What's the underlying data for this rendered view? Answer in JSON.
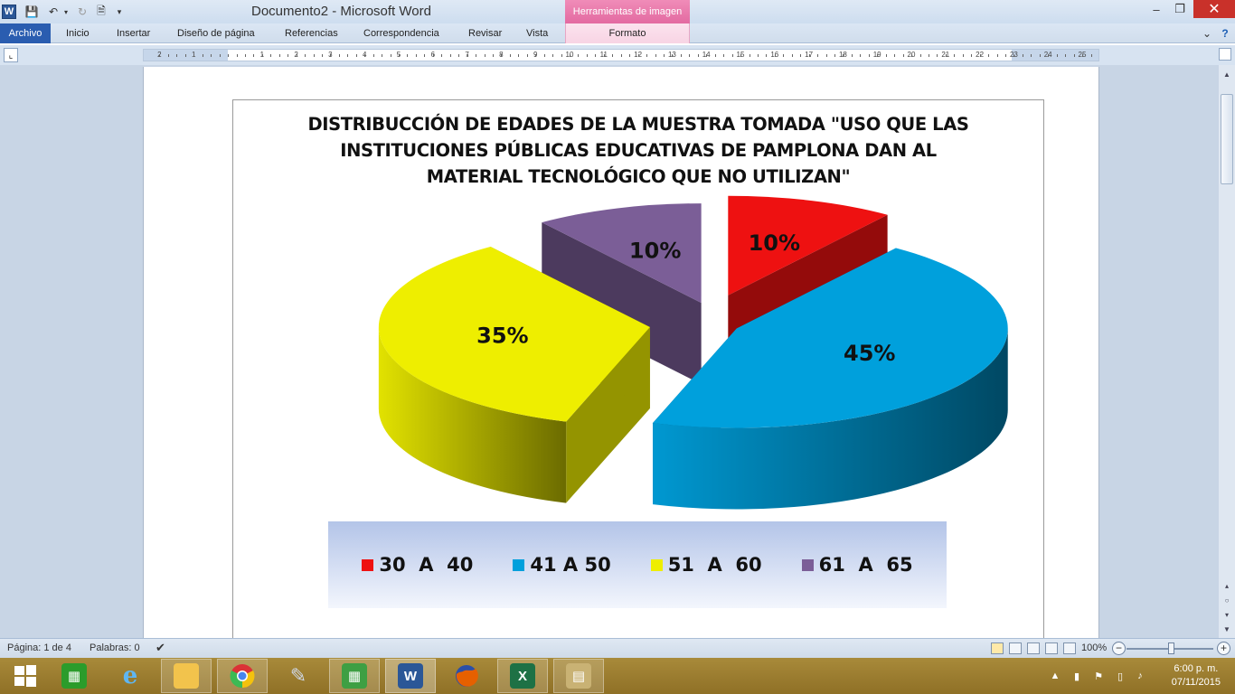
{
  "window": {
    "title": "Documento2  -  Microsoft Word",
    "app_icon_letter": "W",
    "context_tab_group": "Herramientas de imagen",
    "minimize": "–",
    "restore": "❐",
    "close": "✕"
  },
  "ribbon": {
    "tabs": [
      "Archivo",
      "Inicio",
      "Insertar",
      "Diseño de página",
      "Referencias",
      "Correspondencia",
      "Revisar",
      "Vista"
    ],
    "context_tab": "Formato",
    "accent_color": "#2a5db0"
  },
  "ruler": {
    "numbers": [
      "2",
      "1",
      "1",
      "2",
      "3",
      "4",
      "5",
      "6",
      "7",
      "8",
      "9",
      "10",
      "11",
      "12",
      "13",
      "14",
      "15",
      "16",
      "17",
      "18",
      "19",
      "20",
      "21",
      "22",
      "23",
      "24",
      "25"
    ]
  },
  "chart_data": {
    "type": "pie",
    "style": "3d-exploded",
    "title": "DISTRIBUCCIÓN DE EDADES DE LA MUESTRA TOMADA \"USO QUE LAS INSTITUCIONES PÚBLICAS EDUCATIVAS DE PAMPLONA DAN AL MATERIAL TECNOLÓGICO QUE NO UTILIZAN\"",
    "title_lines": [
      "DISTRIBUCCIÓN DE EDADES DE LA MUESTRA TOMADA \"USO QUE LAS",
      "INSTITUCIONES PÚBLICAS EDUCATIVAS DE PAMPLONA DAN AL",
      "MATERIAL TECNOLÓGICO QUE NO UTILIZAN\""
    ],
    "categories": [
      "30  A  40",
      "41 A 50",
      "51  A  60",
      "61  A  65"
    ],
    "values": [
      10,
      45,
      35,
      10
    ],
    "data_labels": [
      "10%",
      "45%",
      "35%",
      "10%"
    ],
    "colors": [
      "#ee1111",
      "#00a0dc",
      "#eeee00",
      "#7b5e97"
    ],
    "legend_placement": "bottom"
  },
  "status": {
    "page": "Página: 1 de 4",
    "words": "Palabras: 0",
    "zoom": "100%",
    "zoom_out": "−",
    "zoom_in": "+"
  },
  "taskbar": {
    "apps": [
      "windows-start",
      "store",
      "internet-explorer",
      "file-explorer",
      "chrome",
      "scanner",
      "calculator",
      "word",
      "firefox",
      "excel",
      "archive"
    ],
    "time": "6:00 p. m.",
    "date": "07/11/2015"
  }
}
